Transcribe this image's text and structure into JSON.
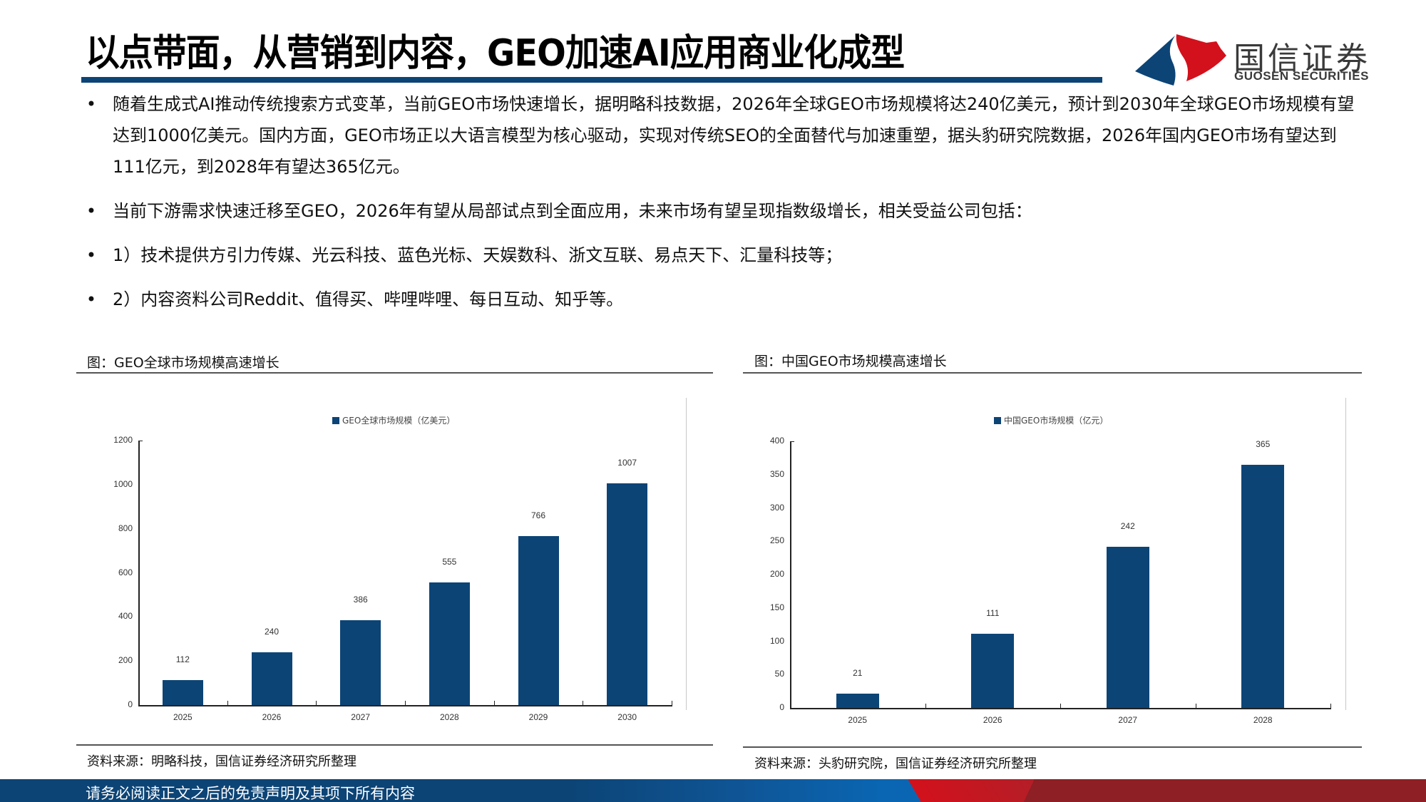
{
  "header": {
    "title": "以点带面，从营销到内容，GEO加速AI应用商业化成型",
    "logo_cn": "国信证券",
    "logo_en": "GUOSEN SECURITIES",
    "accent_color": "#0c4476",
    "logo_red": "#d2111c"
  },
  "bullets": [
    {
      "marker": "•",
      "text": "随着生成式AI推动传统搜索方式变革，当前GEO市场快速增长，据明略科技数据，2026年全球GEO市场规模将达240亿美元，预计到2030年全球GEO市场规模有望达到1000亿美元。国内方面，GEO市场正以大语言模型为核心驱动，实现对传统SEO的全面替代与加速重塑，据头豹研究院数据，2026年国内GEO市场有望达到111亿元，到2028年有望达365亿元。"
    },
    {
      "marker": "•",
      "text": "当前下游需求快速迁移至GEO，2026年有望从局部试点到全面应用，未来市场有望呈现指数级增长，相关受益公司包括："
    },
    {
      "marker": "•",
      "text": "1）技术提供方引力传媒、光云科技、蓝色光标、天娱数科、浙文互联、易点天下、汇量科技等；"
    },
    {
      "marker": "•",
      "text": "2）内容资料公司Reddit、值得买、哔哩哔哩、每日互动、知乎等。"
    }
  ],
  "figures": [
    {
      "caption": "图：GEO全球市场规模高速增长",
      "source": "资料来源：明略科技，国信证券经济研究所整理"
    },
    {
      "caption": "图：中国GEO市场规模高速增长",
      "source": "资料来源：头豹研究院，国信证券经济研究所整理"
    }
  ],
  "chart_data": [
    {
      "type": "bar",
      "title": "图：GEO全球市场规模高速增长",
      "legend": [
        "GEO全球市场规模（亿美元）"
      ],
      "legend_position": "top",
      "categories": [
        "2025",
        "2026",
        "2027",
        "2028",
        "2029",
        "2030"
      ],
      "series": [
        {
          "name": "GEO全球市场规模（亿美元）",
          "values": [
            112,
            240,
            386,
            555,
            766,
            1007
          ],
          "color": "#0c4476"
        }
      ],
      "xlabel": "",
      "ylabel": "",
      "ylim": [
        0,
        1200
      ],
      "yticks": [
        "0",
        "200",
        "400",
        "600",
        "800",
        "1000",
        "1200"
      ],
      "data_labels": [
        "112",
        "240",
        "386",
        "555",
        "766",
        "1007"
      ],
      "grid": false,
      "source": "资料来源：明略科技，国信证券经济研究所整理"
    },
    {
      "type": "bar",
      "title": "图：中国GEO市场规模高速增长",
      "legend": [
        "中国GEO市场规模（亿元）"
      ],
      "legend_position": "top",
      "categories": [
        "2025",
        "2026",
        "2027",
        "2028"
      ],
      "series": [
        {
          "name": "中国GEO市场规模（亿元）",
          "values": [
            21,
            111,
            242,
            365
          ],
          "color": "#0c4476"
        }
      ],
      "xlabel": "",
      "ylabel": "",
      "ylim": [
        0,
        400
      ],
      "yticks": [
        "0",
        "50",
        "100",
        "150",
        "200",
        "250",
        "300",
        "350",
        "400"
      ],
      "data_labels": [
        "21",
        "111",
        "242",
        "365"
      ],
      "grid": false,
      "source": "资料来源：头豹研究院，国信证券经济研究所整理"
    }
  ],
  "footer": {
    "disclaimer": "请务必阅读正文之后的免责声明及其项下所有内容"
  }
}
